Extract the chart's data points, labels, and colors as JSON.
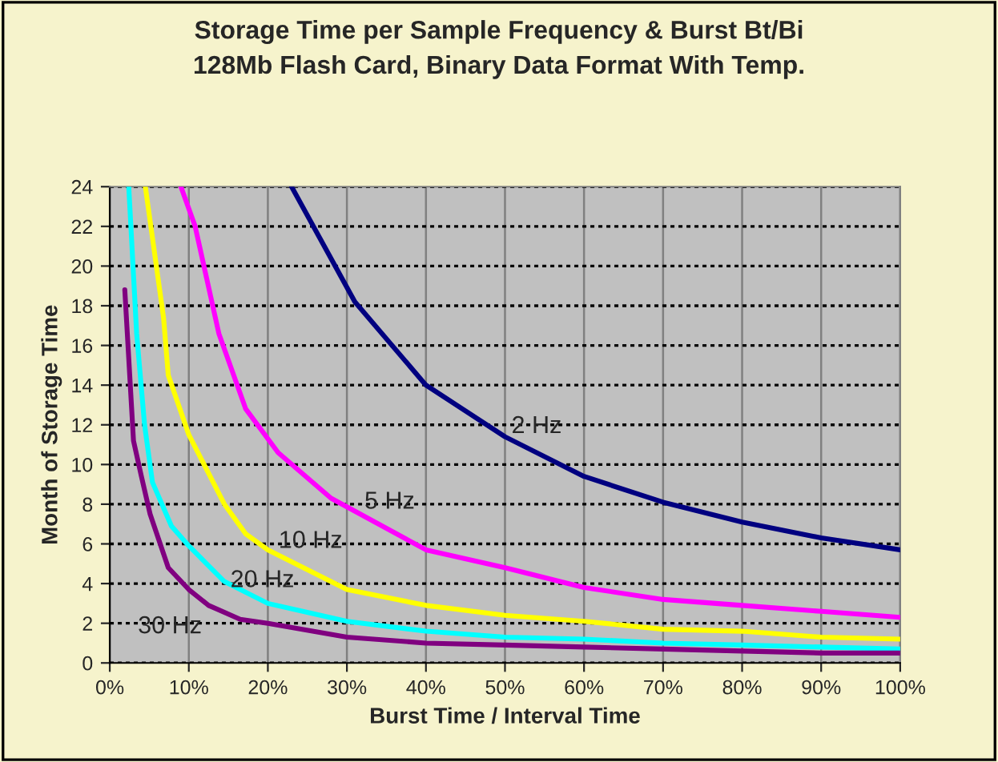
{
  "chart_data": {
    "type": "line",
    "title": "Storage Time per Sample Frequency & Burst Bt/Bi\n128Mb Flash Card, Binary Data Format With Temp.",
    "xlabel": "Burst Time / Interval Time",
    "ylabel": "Month of Storage Time",
    "xlim": [
      0,
      100
    ],
    "xticks": [
      {
        "value": 0,
        "label": "0%"
      },
      {
        "value": 10,
        "label": "10%"
      },
      {
        "value": 20,
        "label": "20%"
      },
      {
        "value": 30,
        "label": "30%"
      },
      {
        "value": 40,
        "label": "40%"
      },
      {
        "value": 50,
        "label": "50%"
      },
      {
        "value": 60,
        "label": "60%"
      },
      {
        "value": 70,
        "label": "70%"
      },
      {
        "value": 80,
        "label": "80%"
      },
      {
        "value": 90,
        "label": "90%"
      },
      {
        "value": 100,
        "label": "100%"
      }
    ],
    "ylim": [
      0,
      24
    ],
    "yticks": [
      0,
      2,
      4,
      6,
      8,
      10,
      12,
      14,
      16,
      18,
      20,
      22,
      24
    ],
    "grid": true,
    "legend": false,
    "marker": "none",
    "line_style": "solid",
    "series": [
      {
        "name": "2 Hz",
        "color": "#000080",
        "x": [
          23,
          31,
          40,
          50,
          60,
          70,
          80,
          90,
          100
        ],
        "values": [
          24,
          18.2,
          14.0,
          11.4,
          9.4,
          8.1,
          7.1,
          6.3,
          5.7
        ]
      },
      {
        "name": "5 Hz",
        "color": "#ff00ff",
        "x": [
          9,
          10.8,
          13.8,
          17.2,
          21.3,
          28,
          40,
          50,
          60,
          70,
          80,
          90,
          100
        ],
        "values": [
          24,
          22,
          16.6,
          12.8,
          10.6,
          8.3,
          5.7,
          4.8,
          3.8,
          3.2,
          2.9,
          2.6,
          2.3
        ]
      },
      {
        "name": "10 Hz",
        "color": "#ffff00",
        "x": [
          4.5,
          6.8,
          7.4,
          10,
          14.5,
          17.2,
          20,
          30,
          40,
          50,
          60,
          70,
          80,
          90,
          100
        ],
        "values": [
          24,
          17.4,
          14.5,
          11.5,
          8.0,
          6.5,
          5.7,
          3.7,
          2.9,
          2.4,
          2.1,
          1.7,
          1.6,
          1.3,
          1.2
        ]
      },
      {
        "name": "20 Hz",
        "color": "#00ffff",
        "x": [
          2.4,
          3.4,
          4.4,
          5.4,
          7.8,
          10,
          14.5,
          20,
          30,
          40,
          50,
          60,
          70,
          80,
          90,
          100
        ],
        "values": [
          24,
          16.6,
          12.0,
          9.1,
          6.9,
          5.9,
          4.1,
          3.0,
          2.1,
          1.6,
          1.3,
          1.2,
          1.0,
          0.9,
          0.8,
          0.7
        ]
      },
      {
        "name": "30 Hz",
        "color": "#800080",
        "x": [
          1.9,
          3.0,
          4.0,
          5.1,
          7.4,
          10,
          12.5,
          16.5,
          20,
          30,
          40,
          50,
          60,
          70,
          80,
          90,
          100
        ],
        "values": [
          18.8,
          11.2,
          9.4,
          7.5,
          4.8,
          3.7,
          2.9,
          2.2,
          2.0,
          1.3,
          1.0,
          0.9,
          0.8,
          0.7,
          0.6,
          0.5,
          0.5
        ]
      }
    ]
  }
}
